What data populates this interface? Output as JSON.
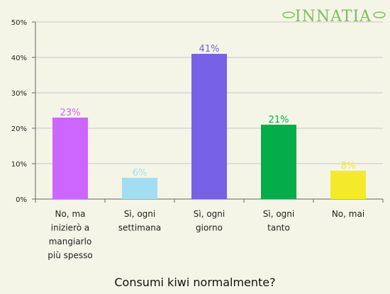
{
  "logo": {
    "text": "INNATIA",
    "color": "#7bbf5a"
  },
  "chart_data": {
    "type": "bar",
    "title": "Consumi kiwi normalmente?",
    "xlabel": "",
    "ylabel": "",
    "ylim": [
      0,
      50
    ],
    "yticks": [
      "0%",
      "10%",
      "20%",
      "30%",
      "40%",
      "50%"
    ],
    "grid": true,
    "categories": [
      [
        "No, ma",
        "inizierò a",
        "mangiarlo",
        "più spesso"
      ],
      [
        "Sì, ogni",
        "settimana"
      ],
      [
        "Sì, ogni",
        "giorno"
      ],
      [
        "Sì, ogni",
        "tanto"
      ],
      [
        "No, mai"
      ]
    ],
    "values": [
      23,
      6,
      41,
      21,
      8
    ],
    "labels": [
      "23%",
      "6%",
      "41%",
      "21%",
      "8%"
    ],
    "colors": [
      "#cc66ff",
      "#a3ddf2",
      "#7761e6",
      "#05ad4a",
      "#f4ea29"
    ]
  }
}
